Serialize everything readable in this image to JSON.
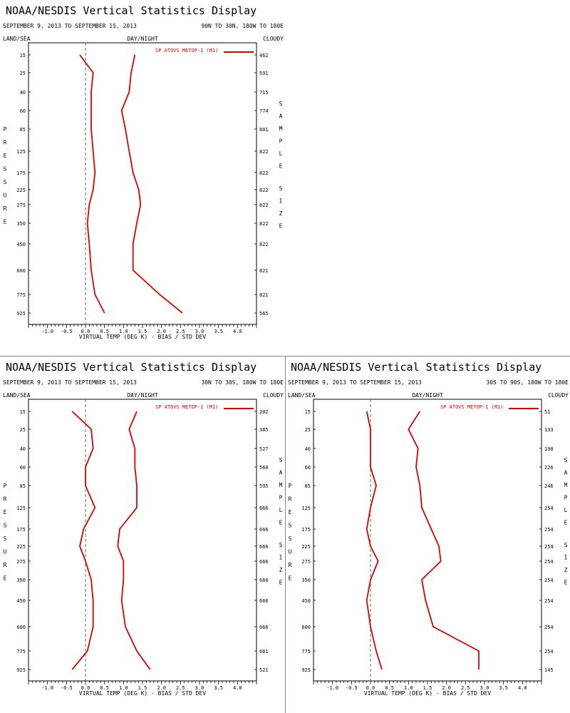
{
  "chart_data": [
    {
      "type": "line",
      "title": "NOAA/NESDIS Vertical Statistics Display",
      "date_range": "SEPTEMBER 9, 2013 TO SEPTEMBER 15, 2013",
      "region": "90N TO 30N, 180W TO 180E",
      "top_left_label": "LAND/SEA",
      "top_center_label": "DAY/NIGHT",
      "top_right_label": "CLOUDY",
      "ylabel": "PRESSURE",
      "right_axis_label": "SAMPLE SIZE",
      "xlabel": "VIRTUAL TEMP (DEG K) - BIAS / STD DEV",
      "xlim": [
        -1.5,
        4.5
      ],
      "x_ticks": [
        "-1.0",
        "-0.5",
        "0.0",
        "0.5",
        "1.0",
        "1.5",
        "2.0",
        "2.5",
        "3.0",
        "3.5",
        "4.0"
      ],
      "pressure_levels": [
        "15",
        "25",
        "40",
        "60",
        "85",
        "125",
        "175",
        "225",
        "275",
        "350",
        "450",
        "600",
        "775",
        "925"
      ],
      "sample_sizes": [
        "462",
        "591",
        "715",
        "774",
        "801",
        "822",
        "822",
        "822",
        "822",
        "822",
        "822",
        "821",
        "821",
        "565"
      ],
      "legend": "SP ATOVS METOP-1 (M1)",
      "series": [
        {
          "name": "BIAS",
          "values": [
            -0.15,
            0.2,
            0.15,
            0.15,
            0.15,
            0.2,
            0.25,
            0.2,
            0.1,
            0.05,
            0.1,
            0.15,
            0.25,
            0.5
          ]
        },
        {
          "name": "STD DEV",
          "values": [
            1.3,
            1.2,
            1.15,
            0.95,
            1.05,
            1.15,
            1.25,
            1.4,
            1.45,
            1.35,
            1.25,
            1.25,
            1.95,
            2.55
          ]
        }
      ]
    },
    {
      "type": "line",
      "title": "NOAA/NESDIS Vertical Statistics Display",
      "date_range": "SEPTEMBER 9, 2013 TO SEPTEMBER 15, 2013",
      "region": "30N TO 30S, 180W TO 180E",
      "top_left_label": "LAND/SEA",
      "top_center_label": "DAY/NIGHT",
      "top_right_label": "CLOUDY",
      "ylabel": "PRESSURE",
      "right_axis_label": "SAMPLE SIZE",
      "xlabel": "VIRTUAL TEMP (DEG K) - BIAS / STD DEV",
      "xlim": [
        -1.5,
        4.5
      ],
      "x_ticks": [
        "-1.0",
        "-0.5",
        "0.0",
        "0.5",
        "1.0",
        "1.5",
        "2.0",
        "2.5",
        "3.0",
        "3.5",
        "4.0"
      ],
      "pressure_levels": [
        "15",
        "25",
        "40",
        "60",
        "85",
        "125",
        "175",
        "225",
        "275",
        "350",
        "450",
        "600",
        "775",
        "925"
      ],
      "sample_sizes": [
        "202",
        "385",
        "527",
        "560",
        "595",
        "666",
        "666",
        "666",
        "666",
        "666",
        "666",
        "666",
        "661",
        "521"
      ],
      "legend": "SP ATOVS METOP-1 (M1)",
      "series": [
        {
          "name": "BIAS",
          "values": [
            -0.35,
            0.15,
            0.2,
            0.0,
            0.0,
            0.25,
            -0.05,
            -0.15,
            0.0,
            0.15,
            0.2,
            0.2,
            0.05,
            -0.35
          ]
        },
        {
          "name": "STD DEV",
          "values": [
            1.35,
            1.15,
            1.3,
            1.3,
            1.35,
            1.35,
            0.9,
            0.85,
            1.0,
            1.0,
            0.95,
            1.05,
            1.35,
            1.7
          ]
        }
      ]
    },
    {
      "type": "line",
      "title": "NOAA/NESDIS Vertical Statistics Display",
      "date_range": "SEPTEMBER 9, 2013 TO SEPTEMBER 15, 2013",
      "region": "30S TO 90S, 180W TO 180E",
      "top_left_label": "LAND/SEA",
      "top_center_label": "DAY/NIGHT",
      "top_right_label": "CLOUDY",
      "ylabel": "PRESSURE",
      "right_axis_label": "SAMPLE SIZE",
      "xlabel": "VIRTUAL TEMP (DEG K) - BIAS / STD DEV",
      "xlim": [
        -1.5,
        4.5
      ],
      "x_ticks": [
        "-1.0",
        "-0.5",
        "0.0",
        "0.5",
        "1.0",
        "1.5",
        "2.0",
        "2.5",
        "3.0",
        "3.5",
        "4.0"
      ],
      "pressure_levels": [
        "15",
        "25",
        "40",
        "60",
        "85",
        "125",
        "175",
        "225",
        "275",
        "350",
        "450",
        "600",
        "775",
        "925"
      ],
      "sample_sizes": [
        "51",
        "133",
        "198",
        "226",
        "246",
        "254",
        "254",
        "254",
        "254",
        "254",
        "254",
        "254",
        "254",
        "145"
      ],
      "legend": "SP ATOVS METOP-1 (M1)",
      "series": [
        {
          "name": "BIAS",
          "values": [
            -0.1,
            0.0,
            0.0,
            0.0,
            0.15,
            0.0,
            -0.1,
            0.0,
            0.2,
            0.0,
            -0.1,
            0.0,
            0.15,
            0.3
          ]
        },
        {
          "name": "STD DEV",
          "values": [
            1.3,
            1.0,
            1.25,
            1.2,
            1.3,
            1.35,
            1.6,
            1.8,
            1.85,
            1.35,
            1.45,
            1.65,
            2.85,
            2.85
          ]
        }
      ]
    }
  ],
  "colors": {
    "series": "#dd0000",
    "axis": "#000000",
    "zero_line": "#666666",
    "divider": "#888888"
  }
}
